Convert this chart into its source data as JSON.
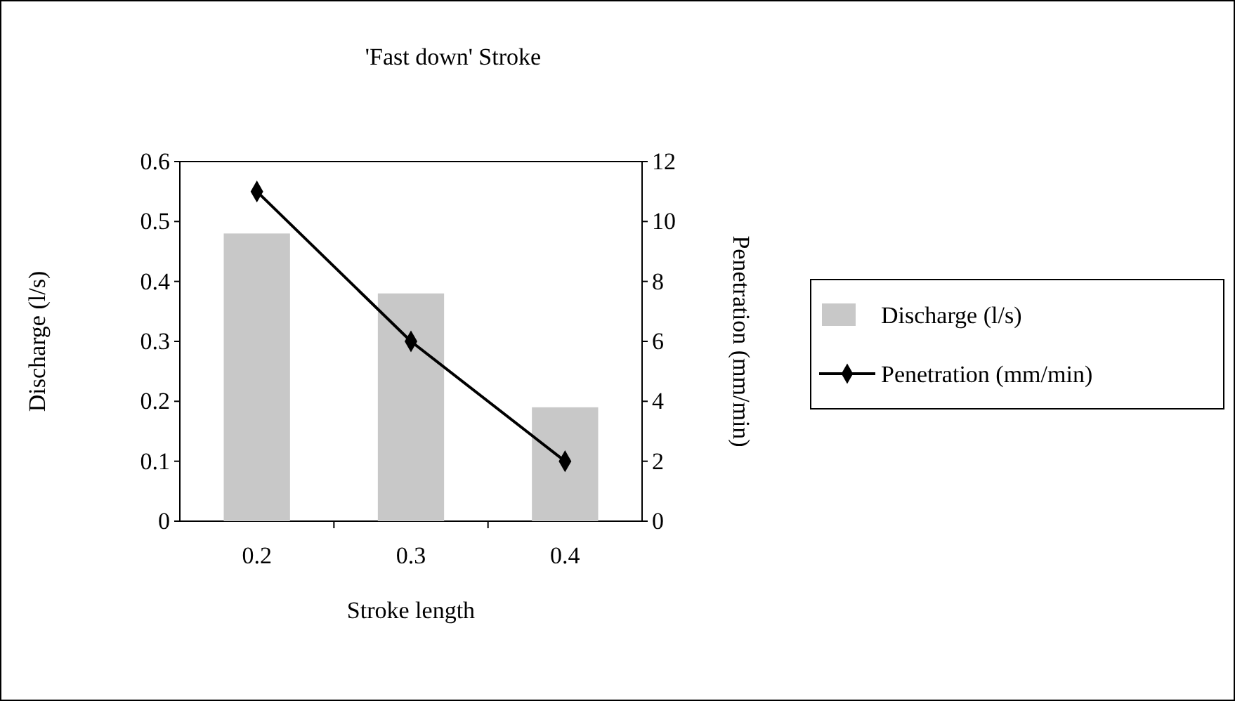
{
  "chart_data": {
    "type": "bar",
    "title": "'Fast down' Stroke",
    "xlabel": "Stroke length",
    "ylabel": "Discharge (l/s)",
    "y2label": "Penetration (mm/min)",
    "categories": [
      "0.2",
      "0.3",
      "0.4"
    ],
    "series": [
      {
        "name": "Discharge (l/s)",
        "color": "#c8c8c8",
        "values": [
          0.48,
          0.38,
          0.19
        ]
      },
      {
        "name": "Penetration (mm/min)",
        "type": "line",
        "axis": "y2",
        "color": "#000000",
        "marker": "diamond",
        "values": [
          11,
          6,
          2
        ]
      }
    ],
    "ylim": [
      0,
      0.6
    ],
    "yticks": [
      0,
      0.1,
      0.2,
      0.3,
      0.4,
      0.5,
      0.6
    ],
    "y2lim": [
      0,
      12
    ],
    "y2ticks": [
      0,
      2,
      4,
      6,
      8,
      10,
      12
    ],
    "legend": "right",
    "grid": false
  }
}
